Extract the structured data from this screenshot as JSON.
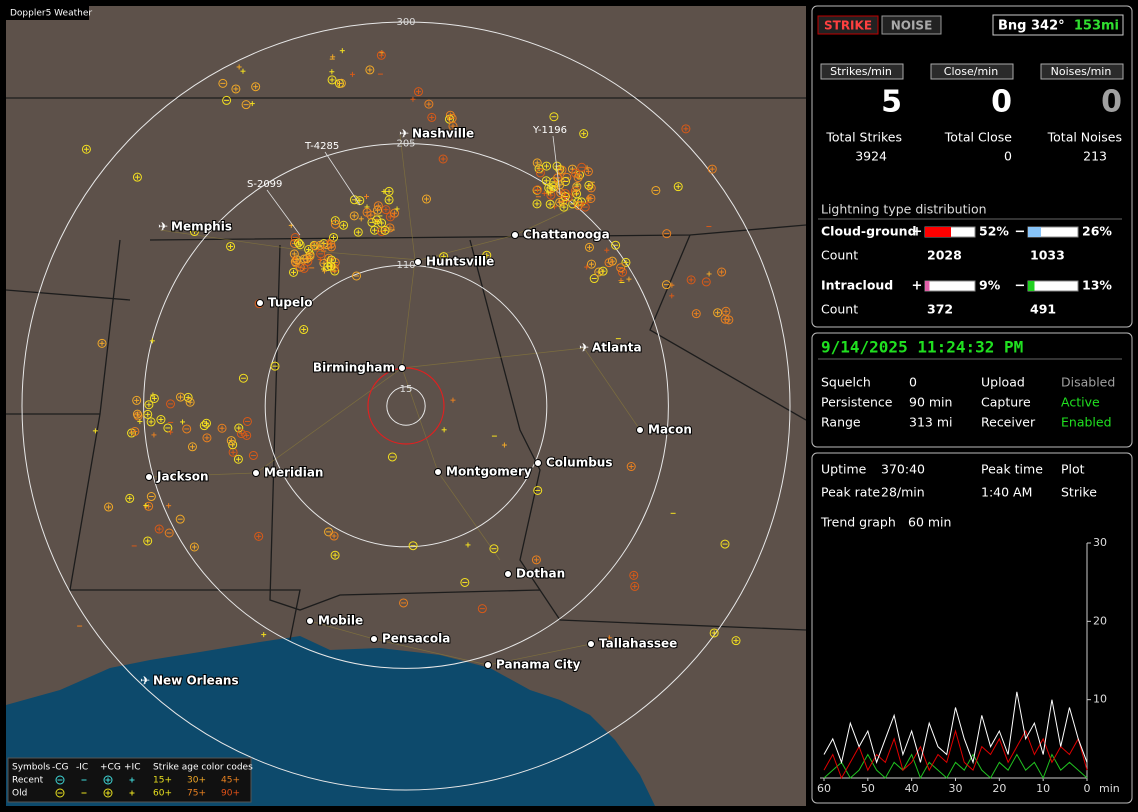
{
  "window_title": "Doppler5 Weather",
  "map": {
    "rings": [
      300,
      205,
      110,
      15
    ],
    "cities": [
      "Memphis",
      "Nashville",
      "Chattanooga",
      "Huntsville",
      "Tupelo",
      "Birmingham",
      "Atlanta",
      "Macon",
      "Jackson",
      "Meridian",
      "Montgomery",
      "Columbus",
      "Dothan",
      "Mobile",
      "Pensacola",
      "Panama City",
      "Tallahassee",
      "New Orleans"
    ],
    "tracks": [
      "Y-1196",
      "T-4285",
      "S-2099"
    ]
  },
  "legend": {
    "symbols_label": "Symbols",
    "columns": [
      "-CG",
      "-IC",
      "+CG",
      "+IC"
    ],
    "rows": [
      "Recent",
      "Old"
    ],
    "age_title": "Strike age color codes",
    "ages": [
      [
        "15+",
        "30+",
        "45+"
      ],
      [
        "60+",
        "75+",
        "90+"
      ]
    ]
  },
  "panel": {
    "mode_buttons": [
      "STRIKE",
      "NOISE"
    ],
    "bearing": "Bng 342°",
    "distance": "153mi",
    "rates": [
      {
        "label": "Strikes/min",
        "value": 5,
        "color": "#ffffff"
      },
      {
        "label": "Close/min",
        "value": 0,
        "color": "#ffffff"
      },
      {
        "label": "Noises/min",
        "value": 0,
        "color": "#a0a0a0"
      }
    ],
    "totals": [
      {
        "label": "Total Strikes",
        "value": 3924
      },
      {
        "label": "Total Close",
        "value": 0
      },
      {
        "label": "Total Noises",
        "value": 213
      }
    ],
    "distribution": {
      "title": "Lightning type distribution",
      "count_label": "Count",
      "rows": [
        {
          "name": "Cloud-ground",
          "positive": {
            "sign": "+",
            "value": 52,
            "label": "52%",
            "count": 2028,
            "color": "#ff0000"
          },
          "negative": {
            "sign": "−",
            "value": 26,
            "label": "26%",
            "count": 1033,
            "color": "#88c4f8"
          }
        },
        {
          "name": "Intracloud",
          "positive": {
            "sign": "+",
            "value": 9,
            "label": "9%",
            "count": 372,
            "color": "#e060a8"
          },
          "negative": {
            "sign": "−",
            "value": 13,
            "label": "13%",
            "count": 491,
            "color": "#20d020"
          }
        }
      ]
    },
    "clock": "9/14/2025 11:24:32 PM",
    "settings": [
      {
        "label": "Squelch",
        "value": "0",
        "label2": "Upload",
        "value2": "Disabled",
        "value2_color": "#a0a0a0"
      },
      {
        "label": "Persistence",
        "value": "90 min",
        "label2": "Capture",
        "value2": "Active",
        "value2_color": "#20e020"
      },
      {
        "label": "Range",
        "value": "313 mi",
        "label2": "Receiver",
        "value2": "Enabled",
        "value2_color": "#20e020"
      }
    ],
    "stats": [
      [
        "Uptime",
        "370:40",
        "Peak time",
        "Plot"
      ],
      [
        "Peak rate",
        "28/min",
        "1:40 AM",
        "Strike"
      ],
      [
        "Trend graph",
        "60 min"
      ]
    ]
  },
  "trend": {
    "xlim": [
      60,
      0
    ],
    "ylim": [
      0,
      30
    ],
    "yticks": [
      30,
      20,
      10
    ],
    "xticks": [
      60,
      50,
      40,
      30,
      20,
      10,
      0
    ],
    "x_unit": "min",
    "x": [
      60,
      58,
      56,
      54,
      52,
      50,
      48,
      46,
      44,
      42,
      40,
      38,
      36,
      34,
      32,
      30,
      28,
      26,
      24,
      22,
      20,
      18,
      16,
      14,
      12,
      10,
      8,
      6,
      4,
      2,
      0
    ],
    "series": [
      {
        "color": "#ffffff",
        "values": [
          3,
          5,
          2,
          7,
          4,
          6,
          2,
          5,
          8,
          3,
          6,
          2,
          7,
          4,
          3,
          9,
          5,
          2,
          8,
          4,
          6,
          3,
          11,
          5,
          7,
          3,
          10,
          4,
          9,
          5,
          2
        ]
      },
      {
        "color": "#e00000",
        "values": [
          1,
          3,
          0,
          2,
          4,
          1,
          3,
          2,
          5,
          1,
          2,
          4,
          1,
          3,
          2,
          6,
          2,
          1,
          4,
          3,
          5,
          2,
          4,
          6,
          3,
          5,
          2,
          4,
          3,
          5,
          1
        ]
      },
      {
        "color": "#20c020",
        "values": [
          0,
          1,
          2,
          0,
          1,
          3,
          1,
          0,
          2,
          1,
          3,
          0,
          2,
          1,
          0,
          2,
          1,
          3,
          1,
          0,
          2,
          1,
          3,
          1,
          2,
          0,
          3,
          1,
          2,
          1,
          0
        ]
      }
    ]
  }
}
